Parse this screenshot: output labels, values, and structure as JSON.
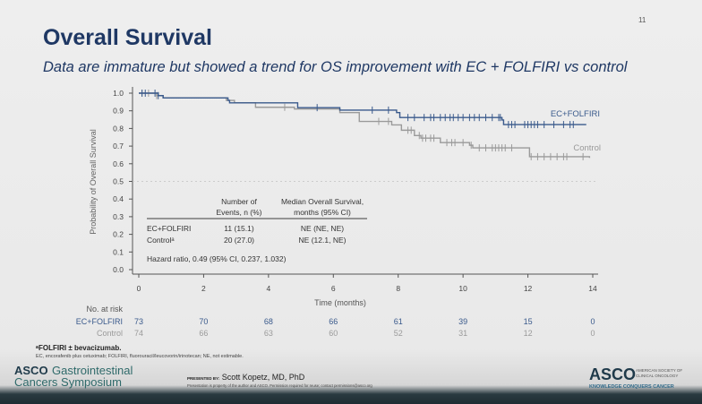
{
  "slide": {
    "title": "Overall Survival",
    "subtitle": "Data are immature but showed a trend for OS improvement with EC + FOLFIRI vs control",
    "page_number": "11"
  },
  "chart_data": {
    "type": "line",
    "subtype": "kaplan-meier",
    "xlabel": "Time (months)",
    "ylabel": "Probability of Overall Survival",
    "xlim": [
      0,
      14
    ],
    "ylim": [
      0,
      1.0
    ],
    "xticks": [
      "0",
      "2",
      "4",
      "6",
      "8",
      "10",
      "12",
      "14"
    ],
    "yticks": [
      "0.0",
      "0.1",
      "0.2",
      "0.3",
      "0.4",
      "0.5",
      "0.6",
      "0.7",
      "0.8",
      "0.9",
      "1.0"
    ],
    "reference_line": 0.5,
    "grid": false,
    "series": [
      {
        "name": "EC+FOLFIRI",
        "color": "#3a5a8c",
        "steps": [
          [
            0,
            1.0
          ],
          [
            0.6,
            0.986
          ],
          [
            0.75,
            0.973
          ],
          [
            2.75,
            0.959
          ],
          [
            2.8,
            0.945
          ],
          [
            4.9,
            0.918
          ],
          [
            6.2,
            0.904
          ],
          [
            7.95,
            0.89
          ],
          [
            8.05,
            0.862
          ],
          [
            11.2,
            0.848
          ],
          [
            11.25,
            0.822
          ],
          [
            13.8,
            0.822
          ]
        ],
        "censored": [
          0.1,
          0.2,
          0.5,
          0.6,
          5.5,
          7.2,
          7.7,
          8.3,
          8.5,
          8.8,
          9.0,
          9.1,
          9.3,
          9.45,
          9.6,
          9.7,
          9.85,
          10.0,
          10.2,
          10.35,
          10.5,
          10.7,
          10.9,
          11.1,
          11.15,
          11.4,
          11.5,
          11.6,
          11.9,
          12.0,
          12.1,
          12.2,
          12.3,
          12.5,
          12.8,
          13.1,
          13.3,
          13.4
        ]
      },
      {
        "name": "Control",
        "color": "#9a9a9a",
        "steps": [
          [
            0,
            1.0
          ],
          [
            0.55,
            0.986
          ],
          [
            0.75,
            0.973
          ],
          [
            2.7,
            0.959
          ],
          [
            2.95,
            0.946
          ],
          [
            3.6,
            0.92
          ],
          [
            4.8,
            0.91
          ],
          [
            6.2,
            0.89
          ],
          [
            6.8,
            0.84
          ],
          [
            7.8,
            0.82
          ],
          [
            8.1,
            0.79
          ],
          [
            8.5,
            0.76
          ],
          [
            8.7,
            0.745
          ],
          [
            9.3,
            0.72
          ],
          [
            10.2,
            0.705
          ],
          [
            10.3,
            0.69
          ],
          [
            12.05,
            0.64
          ],
          [
            13.9,
            0.633
          ]
        ],
        "censored": [
          0.1,
          0.3,
          0.55,
          4.5,
          7.4,
          7.7,
          8.3,
          8.4,
          8.65,
          8.75,
          8.85,
          9.0,
          9.1,
          9.5,
          9.65,
          9.75,
          10.0,
          10.25,
          10.5,
          10.7,
          10.9,
          11.0,
          11.1,
          11.2,
          11.3,
          11.5,
          12.1,
          12.3,
          12.5,
          12.7,
          12.9,
          13.1,
          13.2,
          13.7
        ]
      }
    ],
    "series_labels": [
      "EC+FOLFIRI",
      "Control"
    ],
    "inset_table": {
      "headers": [
        [
          "Number of",
          "Events, n (%)"
        ],
        [
          "Median Overall Survival,",
          "months (95% CI)"
        ]
      ],
      "rows": [
        {
          "label": "EC+FOLFIRI",
          "events": "11 (15.1)",
          "median": "NE (NE, NE)"
        },
        {
          "label": "Controlᵃ",
          "events": "20 (27.0)",
          "median": "NE (12.1, NE)"
        }
      ],
      "hazard_ratio": "Hazard ratio, 0.49 (95% CI, 0.237, 1.032)"
    },
    "at_risk": {
      "title": "No. at risk",
      "rows": [
        {
          "label": "EC+FOLFIRI",
          "color": "#3a5a8c",
          "values": [
            "73",
            "70",
            "68",
            "66",
            "61",
            "39",
            "15",
            "0"
          ]
        },
        {
          "label": "Control",
          "color": "#9a9a9a",
          "values": [
            "74",
            "66",
            "63",
            "60",
            "52",
            "31",
            "12",
            "0"
          ]
        }
      ]
    }
  },
  "footnotes": {
    "main": "ᵃFOLFIRI ± bevacizumab.",
    "abbrev": "EC, encorafenib plus cetuximab; FOLFIRI, fluorouracil/leucovorin/irinotecan; NE, not estimable."
  },
  "footer": {
    "left_logo": [
      "ASCO",
      "Gastrointestinal",
      "Cancers Symposium"
    ],
    "presented_by_label": "PRESENTED BY:",
    "presenter": "Scott Kopetz, MD, PhD",
    "notice": "Presentation is property of the author and ASCO. Permission required for reuse; contact permissions@asco.org",
    "right_logo": [
      "ASCO",
      "AMERICAN SOCIETY OF",
      "CLINICAL ONCOLOGY",
      "KNOWLEDGE CONQUERS CANCER"
    ]
  }
}
